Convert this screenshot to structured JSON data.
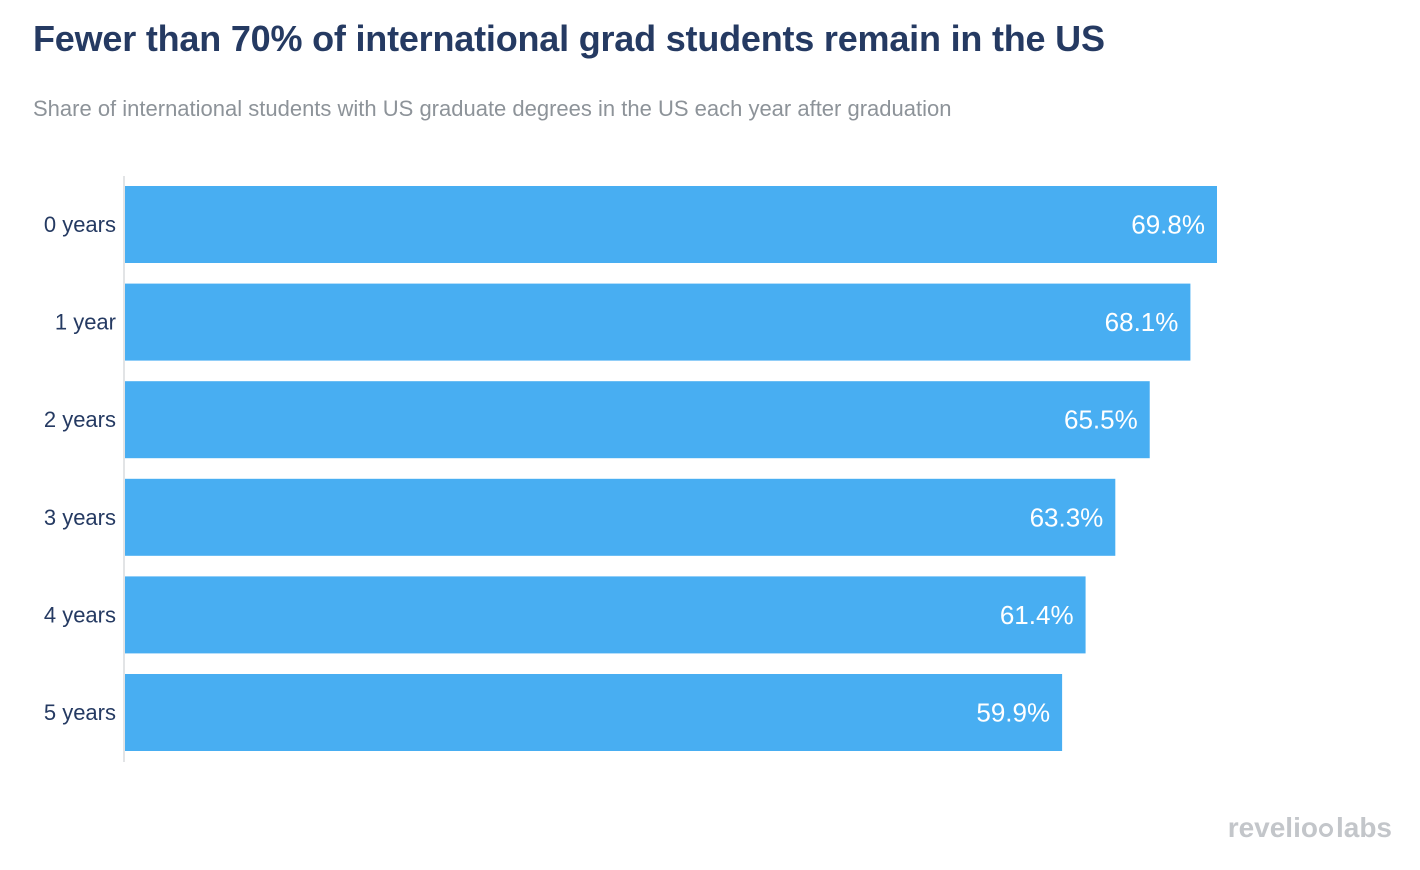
{
  "header": {
    "title": "Fewer than 70% of international grad students remain in the US",
    "subtitle": "Share of international students with US graduate degrees in the US each year after graduation"
  },
  "branding": {
    "logo_text_left": "revelio",
    "logo_text_right": "labs"
  },
  "colors": {
    "bar": "#48aef2",
    "title": "#253a62",
    "subtitle": "#8d9399",
    "category_label": "#253a62",
    "value_label": "#ffffff",
    "axis_line": "#e2e4e6",
    "watermark": "#c3c6ca"
  },
  "chart_data": {
    "type": "bar",
    "orientation": "horizontal",
    "title": "Fewer than 70% of international grad students remain in the US",
    "subtitle": "Share of international students with US graduate degrees in the US each year after graduation",
    "categories": [
      "0 years",
      "1 year",
      "2 years",
      "3 years",
      "4 years",
      "5 years"
    ],
    "values": [
      69.8,
      68.1,
      65.5,
      63.3,
      61.4,
      59.9
    ],
    "value_labels": [
      "69.8%",
      "68.1%",
      "65.5%",
      "63.3%",
      "61.4%",
      "59.9%"
    ],
    "xlim": [
      0,
      70
    ],
    "grid": false,
    "legend": "none"
  }
}
